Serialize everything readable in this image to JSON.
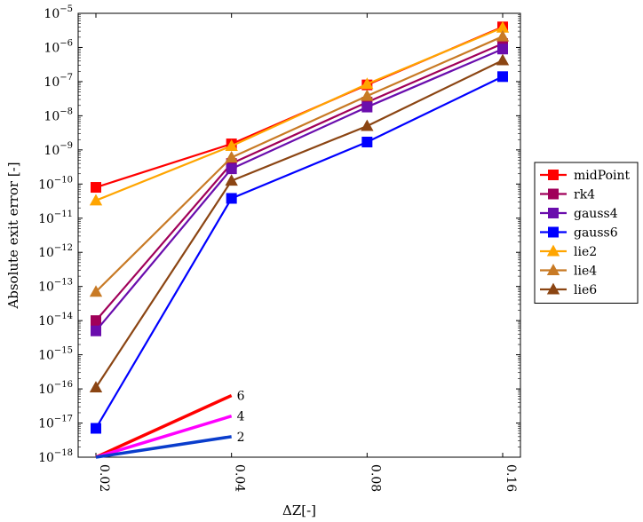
{
  "chart_data": {
    "type": "line",
    "title": "",
    "xlabel": "ΔZ[-]",
    "ylabel": "Absolute exit error [-]",
    "x_scale": "log2",
    "y_scale": "log10",
    "x": [
      0.02,
      0.04,
      0.08,
      0.16
    ],
    "x_tick_labels": [
      "0.02",
      "0.04",
      "0.08",
      "0.16"
    ],
    "ylim": [
      1e-18,
      1e-05
    ],
    "y_tick_labels": [
      "10−18",
      "10−17",
      "10−16",
      "10−15",
      "10−14",
      "10−13",
      "10−12",
      "10−11",
      "10−10",
      "10−9",
      "10−8",
      "10−7",
      "10−6",
      "10−5"
    ],
    "legend_position": "right",
    "grid": false,
    "series": [
      {
        "name": "midPoint",
        "marker": "square",
        "color": "#ff0000",
        "values": [
          8e-11,
          1.5e-09,
          8e-08,
          4e-06
        ]
      },
      {
        "name": "rk4",
        "marker": "square",
        "color": "#a0005a",
        "values": [
          1e-14,
          4e-10,
          2.5e-08,
          1.3e-06
        ]
      },
      {
        "name": "gauss4",
        "marker": "square",
        "color": "#6a0dad",
        "values": [
          5e-15,
          2.8e-10,
          1.8e-08,
          9e-07
        ]
      },
      {
        "name": "gauss6",
        "marker": "square",
        "color": "#0000ff",
        "values": [
          7e-18,
          3.8e-11,
          1.7e-09,
          1.4e-07
        ]
      },
      {
        "name": "lie2",
        "marker": "triangle",
        "color": "#ffa500",
        "values": [
          3.3e-11,
          1.3e-09,
          8.5e-08,
          3.8e-06
        ]
      },
      {
        "name": "lie4",
        "marker": "triangle",
        "color": "#c87a25",
        "values": [
          7e-14,
          6e-10,
          3.8e-08,
          2.1e-06
        ]
      },
      {
        "name": "lie6",
        "marker": "triangle",
        "color": "#8b4513",
        "values": [
          1.1e-16,
          1.25e-10,
          5e-09,
          4.2e-07
        ]
      }
    ],
    "reference_slopes": [
      {
        "label": "6",
        "color": "#ff0000",
        "x": [
          0.02,
          0.04
        ],
        "values": [
          1e-18,
          6.4e-17
        ]
      },
      {
        "label": "4",
        "color": "#ff00ff",
        "x": [
          0.02,
          0.04
        ],
        "values": [
          1e-18,
          1.6e-17
        ]
      },
      {
        "label": "2",
        "color": "#0a3dcc",
        "x": [
          0.02,
          0.04
        ],
        "values": [
          1e-18,
          4e-18
        ]
      }
    ]
  }
}
